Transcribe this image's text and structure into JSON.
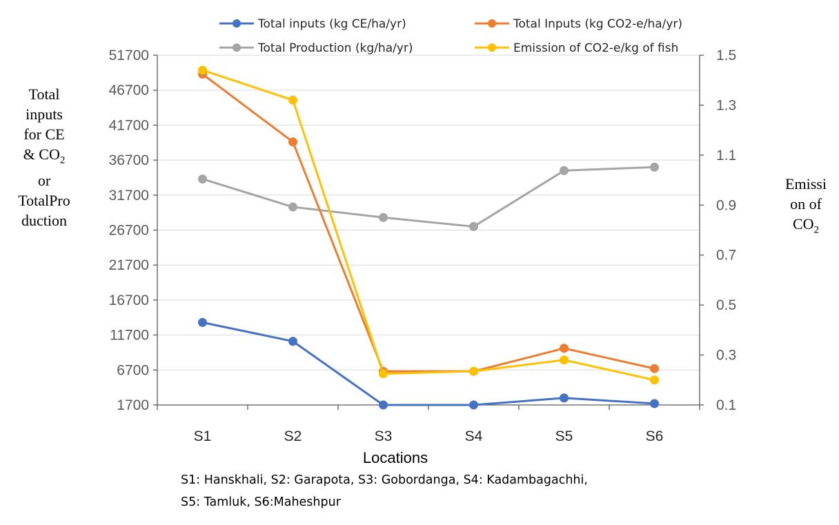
{
  "chart_data": {
    "type": "line",
    "categories": [
      "S1",
      "S2",
      "S3",
      "S4",
      "S5",
      "S6"
    ],
    "xlabel": "Locations",
    "ylabel_left": [
      "Total",
      "inputs",
      "for CE",
      "& CO",
      "or",
      "TotalPro",
      "duction"
    ],
    "ylabel_right": [
      "Emissi",
      "on of",
      "CO"
    ],
    "ylabel_subscript": "2",
    "y_left": {
      "min": 1700,
      "max": 51700,
      "ticks": [
        1700,
        6700,
        11700,
        16700,
        21700,
        26700,
        31700,
        36700,
        41700,
        46700,
        51700
      ]
    },
    "y_right": {
      "min": 0.1,
      "max": 1.5,
      "ticks": [
        "0.1",
        "0.3",
        "0.5",
        "0.7",
        "0.9",
        "1.1",
        "1.3",
        "1.5"
      ]
    },
    "series": [
      {
        "name": "Total inputs (kg CE/ha/yr)",
        "axis": "left",
        "color": "#4472C4",
        "values": [
          13500,
          10800,
          1700,
          1700,
          2700,
          1900
        ]
      },
      {
        "name": "Total Inputs (kg CO2-e/ha/yr)",
        "axis": "left",
        "color": "#ED7D31",
        "values": [
          49000,
          39300,
          6500,
          6500,
          9800,
          6900
        ]
      },
      {
        "name": "Total Production (kg/ha/yr)",
        "axis": "left",
        "color": "#A5A5A5",
        "values": [
          34000,
          30000,
          28500,
          27200,
          35200,
          35700
        ]
      },
      {
        "name": "Emission of CO2-e/kg of fish",
        "axis": "right",
        "color": "#FFC000",
        "values": [
          1.44,
          1.32,
          0.225,
          0.235,
          0.28,
          0.2
        ]
      }
    ],
    "legend_position": "top",
    "grid": true
  },
  "notes": {
    "line1": "S1: Hanskhali, S2: Garapota, S3: Gobordanga, S4: Kadambagachhi,",
    "line2": "S5: Tamluk, S6:Maheshpur"
  }
}
